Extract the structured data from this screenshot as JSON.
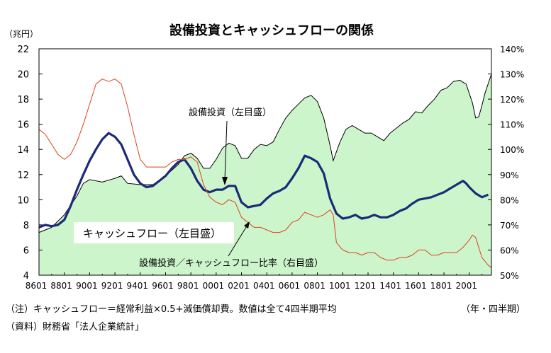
{
  "chart_data": {
    "type": "area+line",
    "title": "設備投資とキャッシュフローの関係",
    "y_left_unit": "（兆円）",
    "x_unit": "（年・四半期）",
    "y_left_ticks": [
      "4",
      "6",
      "8",
      "10",
      "12",
      "14",
      "16",
      "18",
      "20",
      "22"
    ],
    "y_left_range": [
      4,
      22
    ],
    "y_right_ticks": [
      "50%",
      "60%",
      "70%",
      "80%",
      "90%",
      "100%",
      "110%",
      "120%",
      "130%",
      "140%"
    ],
    "y_right_range": [
      50,
      140
    ],
    "x_ticks": [
      "8601",
      "8801",
      "9001",
      "9201",
      "9401",
      "9601",
      "9801",
      "0001",
      "0201",
      "0401",
      "0601",
      "0801",
      "1001",
      "1201",
      "1401",
      "1601",
      "1801",
      "2001"
    ],
    "x_range": [
      1986.0,
      2021.75
    ],
    "grid": false,
    "series": [
      {
        "name": "設備投資（左目盛）",
        "kind": "area",
        "axis": "left",
        "color": "#ccf5cc",
        "points": [
          [
            1986.0,
            7.4
          ],
          [
            1987.0,
            7.8
          ],
          [
            1988.0,
            8.8
          ],
          [
            1989.0,
            10.3
          ],
          [
            1989.5,
            11.3
          ],
          [
            1990.0,
            11.6
          ],
          [
            1991.0,
            11.4
          ],
          [
            1992.0,
            11.7
          ],
          [
            1992.5,
            11.9
          ],
          [
            1993.0,
            11.3
          ],
          [
            1994.0,
            11.2
          ],
          [
            1995.0,
            11.2
          ],
          [
            1996.0,
            11.9
          ],
          [
            1997.0,
            12.8
          ],
          [
            1997.5,
            13.5
          ],
          [
            1998.0,
            13.7
          ],
          [
            1998.5,
            13.3
          ],
          [
            1999.0,
            12.5
          ],
          [
            1999.5,
            12.5
          ],
          [
            2000.0,
            13.2
          ],
          [
            2000.5,
            14.1
          ],
          [
            2001.0,
            14.5
          ],
          [
            2001.5,
            14.3
          ],
          [
            2002.0,
            13.3
          ],
          [
            2002.5,
            13.3
          ],
          [
            2003.0,
            14.0
          ],
          [
            2003.5,
            14.4
          ],
          [
            2004.0,
            14.3
          ],
          [
            2004.5,
            14.6
          ],
          [
            2005.0,
            15.6
          ],
          [
            2005.5,
            16.5
          ],
          [
            2006.0,
            17.1
          ],
          [
            2006.5,
            17.6
          ],
          [
            2007.0,
            18.1
          ],
          [
            2007.5,
            18.3
          ],
          [
            2008.0,
            17.8
          ],
          [
            2008.5,
            16.5
          ],
          [
            2009.0,
            14.3
          ],
          [
            2009.25,
            13.1
          ],
          [
            2009.75,
            14.5
          ],
          [
            2010.25,
            15.6
          ],
          [
            2010.75,
            15.9
          ],
          [
            2011.25,
            15.6
          ],
          [
            2011.75,
            15.3
          ],
          [
            2012.25,
            15.3
          ],
          [
            2012.75,
            15.0
          ],
          [
            2013.25,
            14.7
          ],
          [
            2013.75,
            15.3
          ],
          [
            2014.25,
            15.7
          ],
          [
            2014.75,
            16.1
          ],
          [
            2015.25,
            16.4
          ],
          [
            2015.75,
            17.0
          ],
          [
            2016.25,
            16.9
          ],
          [
            2016.75,
            17.5
          ],
          [
            2017.25,
            18.0
          ],
          [
            2017.75,
            18.7
          ],
          [
            2018.25,
            18.9
          ],
          [
            2018.75,
            19.4
          ],
          [
            2019.25,
            19.5
          ],
          [
            2019.75,
            19.2
          ],
          [
            2020.25,
            17.7
          ],
          [
            2020.5,
            16.5
          ],
          [
            2020.75,
            16.6
          ],
          [
            2021.0,
            17.5
          ],
          [
            2021.25,
            18.5
          ],
          [
            2021.75,
            20.0
          ]
        ]
      },
      {
        "name": "キャッシュフロー（左目盛）",
        "kind": "line",
        "axis": "left",
        "color": "#1c2a78",
        "points": [
          [
            1986.0,
            7.8
          ],
          [
            1986.5,
            8.0
          ],
          [
            1987.0,
            7.9
          ],
          [
            1987.5,
            8.0
          ],
          [
            1988.0,
            8.4
          ],
          [
            1988.5,
            9.5
          ],
          [
            1989.0,
            10.8
          ],
          [
            1989.5,
            12.0
          ],
          [
            1990.0,
            13.1
          ],
          [
            1990.5,
            14.0
          ],
          [
            1991.0,
            14.8
          ],
          [
            1991.5,
            15.3
          ],
          [
            1992.0,
            15.0
          ],
          [
            1992.5,
            14.4
          ],
          [
            1993.0,
            13.2
          ],
          [
            1993.5,
            12.0
          ],
          [
            1994.0,
            11.3
          ],
          [
            1994.5,
            11.0
          ],
          [
            1995.0,
            11.1
          ],
          [
            1995.5,
            11.5
          ],
          [
            1996.0,
            11.9
          ],
          [
            1996.5,
            12.5
          ],
          [
            1997.0,
            13.0
          ],
          [
            1997.5,
            13.2
          ],
          [
            1998.0,
            12.5
          ],
          [
            1998.5,
            11.5
          ],
          [
            1999.0,
            10.8
          ],
          [
            1999.5,
            10.6
          ],
          [
            2000.0,
            10.8
          ],
          [
            2000.5,
            10.8
          ],
          [
            2001.0,
            11.1
          ],
          [
            2001.5,
            11.1
          ],
          [
            2002.0,
            9.8
          ],
          [
            2002.5,
            9.4
          ],
          [
            2003.0,
            9.5
          ],
          [
            2003.5,
            9.6
          ],
          [
            2004.0,
            10.1
          ],
          [
            2004.5,
            10.5
          ],
          [
            2005.0,
            10.7
          ],
          [
            2005.5,
            11.0
          ],
          [
            2006.0,
            11.7
          ],
          [
            2006.5,
            12.5
          ],
          [
            2007.0,
            13.5
          ],
          [
            2007.5,
            13.3
          ],
          [
            2008.0,
            13.0
          ],
          [
            2008.5,
            12.1
          ],
          [
            2009.0,
            10.1
          ],
          [
            2009.5,
            8.9
          ],
          [
            2010.0,
            8.5
          ],
          [
            2010.5,
            8.6
          ],
          [
            2011.0,
            8.8
          ],
          [
            2011.5,
            8.5
          ],
          [
            2012.0,
            8.6
          ],
          [
            2012.5,
            8.8
          ],
          [
            2013.0,
            8.6
          ],
          [
            2013.5,
            8.6
          ],
          [
            2014.0,
            8.8
          ],
          [
            2014.5,
            9.1
          ],
          [
            2015.0,
            9.3
          ],
          [
            2015.5,
            9.7
          ],
          [
            2016.0,
            10.0
          ],
          [
            2016.5,
            10.1
          ],
          [
            2017.0,
            10.2
          ],
          [
            2017.5,
            10.4
          ],
          [
            2018.0,
            10.6
          ],
          [
            2018.5,
            10.9
          ],
          [
            2019.0,
            11.2
          ],
          [
            2019.5,
            11.5
          ],
          [
            2019.75,
            11.3
          ],
          [
            2020.0,
            11.0
          ],
          [
            2020.5,
            10.5
          ],
          [
            2021.0,
            10.2
          ],
          [
            2021.5,
            10.4
          ]
        ]
      },
      {
        "name": "設備投資／キャッシュフロー比率（右目盛）",
        "kind": "line",
        "axis": "right",
        "color": "#e04020",
        "points": [
          [
            1986.0,
            108
          ],
          [
            1986.5,
            106
          ],
          [
            1987.0,
            102
          ],
          [
            1987.5,
            98
          ],
          [
            1988.0,
            96
          ],
          [
            1988.5,
            98
          ],
          [
            1989.0,
            103
          ],
          [
            1989.5,
            110
          ],
          [
            1990.0,
            118
          ],
          [
            1990.5,
            126
          ],
          [
            1991.0,
            128
          ],
          [
            1991.5,
            127
          ],
          [
            1992.0,
            128
          ],
          [
            1992.5,
            126
          ],
          [
            1993.0,
            117
          ],
          [
            1993.5,
            106
          ],
          [
            1994.0,
            96
          ],
          [
            1994.5,
            93
          ],
          [
            1995.0,
            93
          ],
          [
            1995.5,
            93
          ],
          [
            1996.0,
            93
          ],
          [
            1996.5,
            95
          ],
          [
            1997.0,
            96
          ],
          [
            1997.5,
            96
          ],
          [
            1998.0,
            97
          ],
          [
            1998.5,
            95
          ],
          [
            1999.0,
            86
          ],
          [
            1999.5,
            81
          ],
          [
            2000.0,
            79
          ],
          [
            2000.5,
            78
          ],
          [
            2001.0,
            80
          ],
          [
            2001.5,
            79
          ],
          [
            2002.0,
            73
          ],
          [
            2002.5,
            71
          ],
          [
            2003.0,
            69
          ],
          [
            2003.5,
            69
          ],
          [
            2004.0,
            68
          ],
          [
            2004.5,
            67
          ],
          [
            2005.0,
            67
          ],
          [
            2005.5,
            68
          ],
          [
            2006.0,
            71
          ],
          [
            2006.5,
            72
          ],
          [
            2007.0,
            75
          ],
          [
            2007.5,
            74
          ],
          [
            2008.0,
            73
          ],
          [
            2008.5,
            74
          ],
          [
            2009.0,
            76
          ],
          [
            2009.25,
            74
          ],
          [
            2009.5,
            63
          ],
          [
            2010.0,
            60
          ],
          [
            2010.5,
            59
          ],
          [
            2011.0,
            59
          ],
          [
            2011.5,
            58
          ],
          [
            2012.0,
            59
          ],
          [
            2012.5,
            59
          ],
          [
            2013.0,
            57
          ],
          [
            2013.5,
            56
          ],
          [
            2014.0,
            56
          ],
          [
            2014.5,
            57
          ],
          [
            2015.0,
            57
          ],
          [
            2015.5,
            58
          ],
          [
            2016.0,
            60
          ],
          [
            2016.5,
            60
          ],
          [
            2017.0,
            58
          ],
          [
            2017.5,
            58
          ],
          [
            2018.0,
            59
          ],
          [
            2018.5,
            59
          ],
          [
            2019.0,
            59
          ],
          [
            2019.5,
            61
          ],
          [
            2020.0,
            64
          ],
          [
            2020.25,
            66
          ],
          [
            2020.5,
            65
          ],
          [
            2021.0,
            57
          ],
          [
            2021.5,
            54
          ],
          [
            2021.75,
            53
          ]
        ]
      }
    ],
    "labels": {
      "capex": "設備投資（左目盛）",
      "cashflow": "キャッシュフロー（左目盛）",
      "ratio": "設備投資／キャッシュフロー比率（右目盛）"
    }
  },
  "notes": {
    "note1": "（注）キャッシュフロー＝経常利益×0.5+減価償却費。数値は全て4四半期平均",
    "note2": "（資料）財務省「法人企業統計」"
  }
}
